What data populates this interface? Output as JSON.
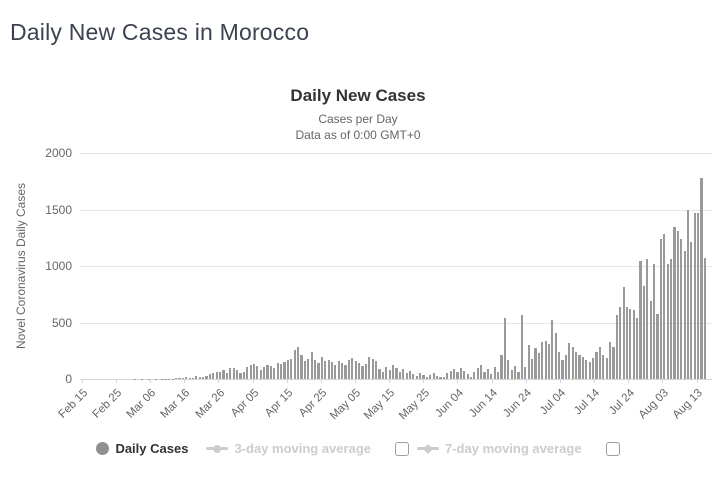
{
  "page": {
    "title": "Daily New Cases in Morocco"
  },
  "chart": {
    "title": "Daily New Cases",
    "subtitle_line1": "Cases per Day",
    "subtitle_line2": "Data as of 0:00 GMT+0",
    "y_axis_title": "Novel Coronavirus Daily Cases",
    "colors": {
      "bar": "#9a9a9a",
      "grid": "#e6e6e6",
      "axis_line": "#d6d6d6",
      "tick": "#ccd6eb",
      "title": "#333333",
      "subtitle": "#666666",
      "axis_labels": "#666666",
      "legend_active_text": "#333333",
      "legend_disabled": "#cccccc"
    },
    "legend": [
      {
        "label": "Daily Cases",
        "marker": "circle",
        "active": true,
        "has_checkbox": false
      },
      {
        "label": "3-day moving average",
        "marker": "line-circle",
        "active": false,
        "has_checkbox": true,
        "checkbox_checked": false
      },
      {
        "label": "7-day moving average",
        "marker": "line-diamond",
        "active": false,
        "has_checkbox": true,
        "checkbox_checked": false
      }
    ]
  },
  "chart_data": {
    "type": "bar",
    "title": "Daily New Cases",
    "subtitle": [
      "Cases per Day",
      "Data as of 0:00 GMT+0"
    ],
    "xlabel": "",
    "ylabel": "Novel Coronavirus Daily Cases",
    "ylim": [
      0,
      2000
    ],
    "yticks": [
      0,
      500,
      1000,
      1500,
      2000
    ],
    "grid": true,
    "legend_position": "bottom",
    "x_start_label": "Feb 15",
    "x_tick_interval_days": 10,
    "xtick_labels": [
      "Feb 15",
      "Feb 25",
      "Mar 06",
      "Mar 16",
      "Mar 26",
      "Apr 05",
      "Apr 15",
      "Apr 25",
      "May 05",
      "May 15",
      "May 25",
      "Jun 04",
      "Jun 14",
      "Jun 24",
      "Jul 04",
      "Jul 14",
      "Jul 24",
      "Aug 03",
      "Aug 13"
    ],
    "series": [
      {
        "name": "Daily Cases",
        "color": "#9a9a9a",
        "values": [
          0,
          0,
          0,
          0,
          0,
          0,
          0,
          0,
          0,
          0,
          0,
          0,
          0,
          0,
          0,
          0,
          1,
          0,
          1,
          0,
          1,
          0,
          1,
          0,
          2,
          2,
          2,
          2,
          10,
          11,
          9,
          16,
          10,
          12,
          26,
          17,
          19,
          26,
          41,
          55,
          65,
          59,
          79,
          50,
          94,
          94,
          79,
          52,
          59,
          106,
          123,
          129,
          118,
          79,
          109,
          123,
          118,
          94,
          138,
          129,
          147,
          168,
          176,
          256,
          281,
          212,
          156,
          179,
          237,
          168,
          141,
          197,
          156,
          171,
          150,
          126,
          160,
          140,
          127,
          170,
          189,
          163,
          140,
          115,
          133,
          197,
          178,
          156,
          85,
          65,
          109,
          79,
          123,
          100,
          65,
          85,
          50,
          73,
          41,
          26,
          56,
          35,
          20,
          35,
          56,
          26,
          15,
          20,
          50,
          73,
          85,
          65,
          94,
          73,
          41,
          20,
          65,
          94,
          123,
          65,
          85,
          41,
          109,
          65,
          212,
          539,
          169,
          81,
          118,
          66,
          563,
          110,
          301,
          175,
          276,
          234,
          330,
          333,
          310,
          526,
          403,
          242,
          169,
          213,
          315,
          283,
          242,
          213,
          199,
          169,
          155,
          184,
          242,
          280,
          213,
          184,
          330,
          280,
          568,
          634,
          811,
          633,
          619,
          609,
          544,
          1046,
          826,
          1063,
          692,
          1021,
          577,
          1241,
          1283,
          1018,
          1062,
          1345,
          1306,
          1240,
          1132,
          1499,
          1216,
          1472,
          1465,
          1776,
          1069
        ]
      }
    ]
  }
}
